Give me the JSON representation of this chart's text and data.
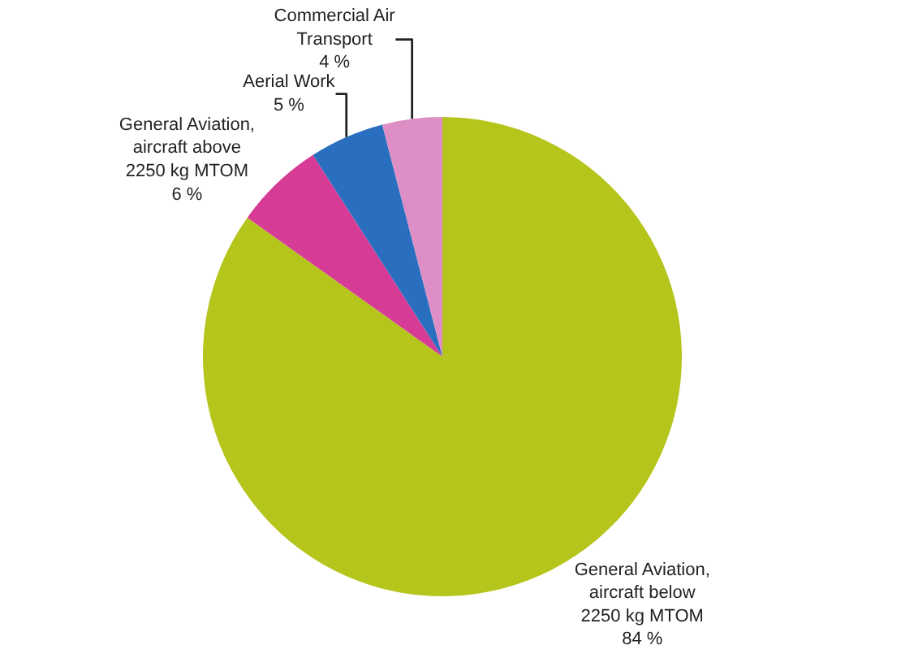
{
  "chart_data": {
    "type": "pie",
    "categories": [
      "General Aviation,\naircraft below\n2250 kg MTOM",
      "General Aviation,\naircraft above\n2250 kg MTOM",
      "Aerial Work",
      "Commercial Air\nTransport"
    ],
    "values": [
      84,
      6,
      5,
      4
    ],
    "value_labels": [
      "84 %",
      "6 %",
      "5 %",
      "4 %"
    ],
    "colors": [
      "#b5c51c",
      "#d63c96",
      "#2a6ebf",
      "#dd8fc5"
    ],
    "legend": false
  }
}
